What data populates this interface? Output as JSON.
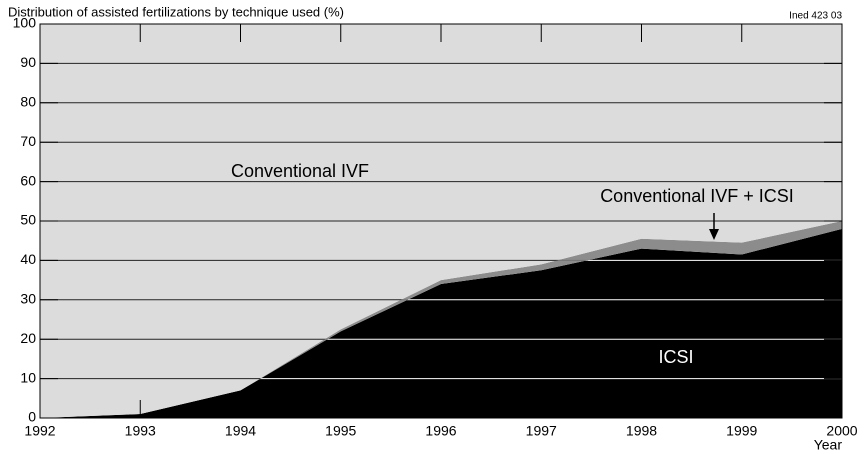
{
  "chart_data": {
    "type": "stacked_area",
    "title": "Distribution of assisted fertilizations by technique used (%)",
    "source": "Ined 423 03",
    "x_label": "Year",
    "x": [
      1992,
      1993,
      1994,
      1995,
      1996,
      1997,
      1998,
      1999,
      2000
    ],
    "series": [
      {
        "name": "ICSI",
        "color": "#000000",
        "values": [
          0,
          1,
          7,
          22,
          34,
          37.5,
          43,
          41.5,
          48
        ]
      },
      {
        "name": "Conventional IVF + ICSI",
        "color": "#8c8c8c",
        "values": [
          0,
          0,
          0,
          0.5,
          1,
          1.5,
          2.5,
          3,
          2
        ]
      },
      {
        "name": "Conventional IVF",
        "color": "#dcdcdc",
        "values": [
          100,
          99,
          93,
          77.5,
          65,
          61,
          54.5,
          55.5,
          50
        ]
      }
    ],
    "xlim": [
      1992,
      2000
    ],
    "xticks": [
      1992,
      1993,
      1994,
      1995,
      1996,
      1997,
      1998,
      1999,
      2000
    ],
    "ylim": [
      0,
      100
    ],
    "yticks": [
      0,
      10,
      20,
      30,
      40,
      50,
      60,
      70,
      80,
      90,
      100
    ],
    "grid": true
  }
}
